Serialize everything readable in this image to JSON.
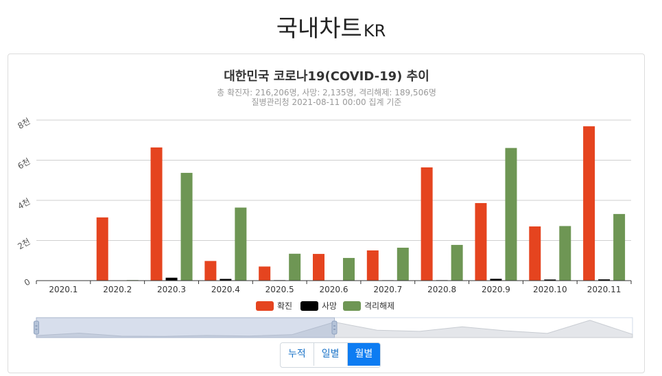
{
  "page": {
    "title": "국내차트",
    "title_suffix": "KR"
  },
  "chart_data": {
    "type": "bar",
    "title": "대한민국 코로나19(COVID-19) 추이",
    "subtitle": "총 확진자: 216,206명, 사망: 2,135명, 격리해제: 189,506명",
    "source": "질병관리청 2021-08-11 00:00 집계 기준",
    "categories": [
      "2020.1",
      "2020.2",
      "2020.3",
      "2020.4",
      "2020.5",
      "2020.6",
      "2020.7",
      "2020.8",
      "2020.9",
      "2020.10",
      "2020.11"
    ],
    "series": [
      {
        "name": "확진",
        "color": "#e5441f",
        "values": [
          11,
          3150,
          6636,
          979,
          703,
          1331,
          1506,
          5642,
          3865,
          2700,
          7690
        ]
      },
      {
        "name": "사망",
        "color": "#000000",
        "values": [
          0,
          17,
          145,
          85,
          23,
          11,
          20,
          23,
          90,
          56,
          62
        ]
      },
      {
        "name": "격리해제",
        "color": "#6e9654",
        "values": [
          0,
          27,
          5370,
          3640,
          1340,
          1130,
          1640,
          1780,
          6610,
          2720,
          3320
        ]
      }
    ],
    "y_ticks": [
      {
        "value": 0,
        "label": "0"
      },
      {
        "value": 2000,
        "label": "2천"
      },
      {
        "value": 4000,
        "label": "4천"
      },
      {
        "value": 6000,
        "label": "6천"
      },
      {
        "value": 8000,
        "label": "8천"
      }
    ],
    "ylim": [
      0,
      8000
    ],
    "grid": true,
    "legend_position": "bottom-center",
    "overview": {
      "values": [
        180,
        400,
        130,
        110,
        190,
        140,
        260,
        1400,
        660,
        560,
        980,
        620,
        380,
        1560,
        300
      ],
      "selection_fraction": [
        0,
        0.5
      ]
    }
  },
  "view_buttons": [
    {
      "label": "누적",
      "active": false
    },
    {
      "label": "일별",
      "active": false
    },
    {
      "label": "월별",
      "active": true
    }
  ]
}
